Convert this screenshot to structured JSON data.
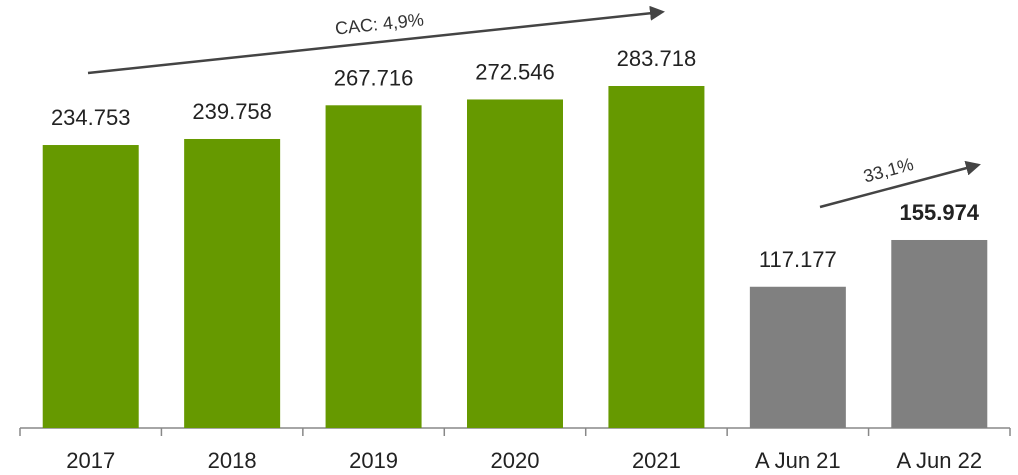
{
  "chart_data": {
    "type": "bar",
    "categories": [
      "2017",
      "2018",
      "2019",
      "2020",
      "2021",
      "A Jun 21",
      "A Jun 22"
    ],
    "values": [
      234753,
      239758,
      267716,
      272546,
      283718,
      117177,
      155974
    ],
    "value_labels": [
      "234.753",
      "239.758",
      "267.716",
      "272.546",
      "283.718",
      "117.177",
      "155.974"
    ],
    "colors": [
      "#669900",
      "#669900",
      "#669900",
      "#669900",
      "#669900",
      "#808080",
      "#808080"
    ],
    "bold": [
      false,
      false,
      false,
      false,
      false,
      false,
      true
    ],
    "annotations": [
      "CAC: 4,9%",
      "33,1%"
    ]
  }
}
